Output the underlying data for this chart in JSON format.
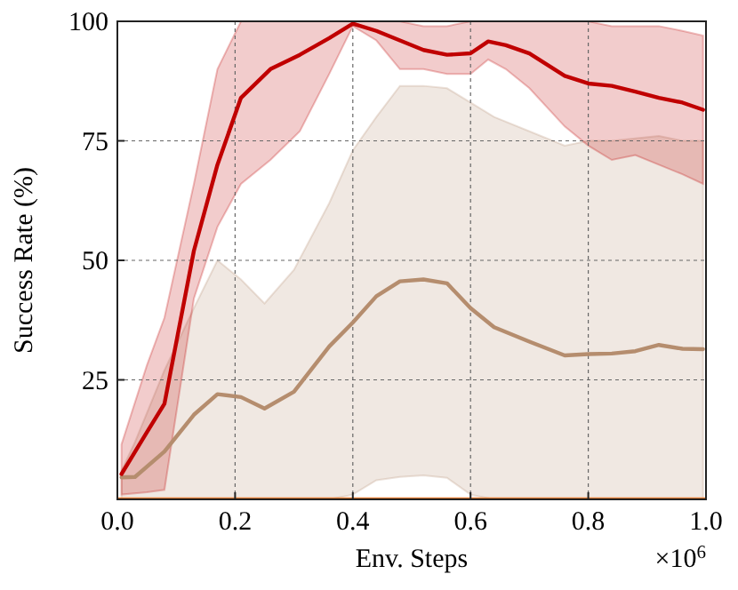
{
  "chart_data": {
    "type": "line",
    "xlabel": "Env. Steps",
    "ylabel": "Success Rate (%)",
    "annotations": [
      "×10$^{6}$"
    ],
    "xlim": [
      0,
      1
    ],
    "xticks": [
      {
        "value": 0,
        "label": "0.0"
      },
      {
        "value": 0.2,
        "label": "0.2"
      },
      {
        "value": 0.4,
        "label": "0.4"
      },
      {
        "value": 0.6,
        "label": "0.6"
      },
      {
        "value": 0.8,
        "label": "0.8"
      },
      {
        "value": 1,
        "label": "1.0"
      }
    ],
    "ylim": [
      0,
      100
    ],
    "yticks": [
      25,
      50,
      75,
      100
    ],
    "grid": true,
    "line_style": "solid",
    "marker": "none",
    "series": [
      {
        "color": "#e07a30",
        "x": [
          0,
          1
        ],
        "values": [
          0,
          0
        ]
      },
      {
        "color": "#b58d6e",
        "x": [
          0.007,
          0.03,
          0.08,
          0.13,
          0.17,
          0.21,
          0.25,
          0.3,
          0.36,
          0.4,
          0.44,
          0.48,
          0.52,
          0.56,
          0.6,
          0.64,
          0.7,
          0.76,
          0.8,
          0.84,
          0.88,
          0.92,
          0.96,
          0.995
        ],
        "values": [
          4.6,
          4.7,
          10,
          17.7,
          22,
          21.4,
          19,
          22.5,
          32,
          37,
          42.5,
          45.6,
          46,
          45.2,
          40,
          36,
          33,
          30.1,
          30.4,
          30.5,
          31,
          32.3,
          31.5,
          31.4
        ],
        "upper": [
          6,
          12,
          27,
          40,
          50,
          46,
          41,
          48,
          62,
          73,
          80,
          86.5,
          86.5,
          86,
          83,
          80,
          77,
          74,
          75,
          75,
          75.5,
          76,
          75,
          75
        ],
        "lower": [
          0,
          0,
          0,
          0,
          0,
          0,
          0,
          0,
          0,
          1,
          4,
          4.7,
          5,
          4.5,
          1,
          0,
          0,
          0,
          0,
          0,
          0,
          0,
          0,
          0
        ]
      },
      {
        "color": "#c00000",
        "x": [
          0.007,
          0.05,
          0.08,
          0.13,
          0.17,
          0.21,
          0.26,
          0.31,
          0.36,
          0.4,
          0.44,
          0.48,
          0.52,
          0.56,
          0.6,
          0.63,
          0.66,
          0.7,
          0.76,
          0.8,
          0.84,
          0.88,
          0.92,
          0.96,
          0.995
        ],
        "values": [
          5.3,
          14,
          20,
          52,
          70,
          84,
          90,
          93,
          96.5,
          99.5,
          98,
          96,
          94,
          93,
          93.3,
          95.8,
          95,
          93.3,
          88.6,
          87,
          86.5,
          85.3,
          84,
          83,
          81.5
        ],
        "upper": [
          11.5,
          28,
          38,
          66,
          90,
          100,
          100,
          100,
          100,
          100,
          100,
          100,
          99,
          99,
          100,
          100,
          100,
          100,
          100,
          100,
          99,
          99,
          99,
          98,
          97
        ],
        "lower": [
          1,
          1.5,
          2,
          42,
          57,
          66,
          71,
          77,
          89,
          99,
          96,
          90,
          90,
          89,
          89,
          92,
          90,
          86,
          78,
          74,
          71,
          72,
          70,
          68,
          66
        ]
      }
    ]
  }
}
